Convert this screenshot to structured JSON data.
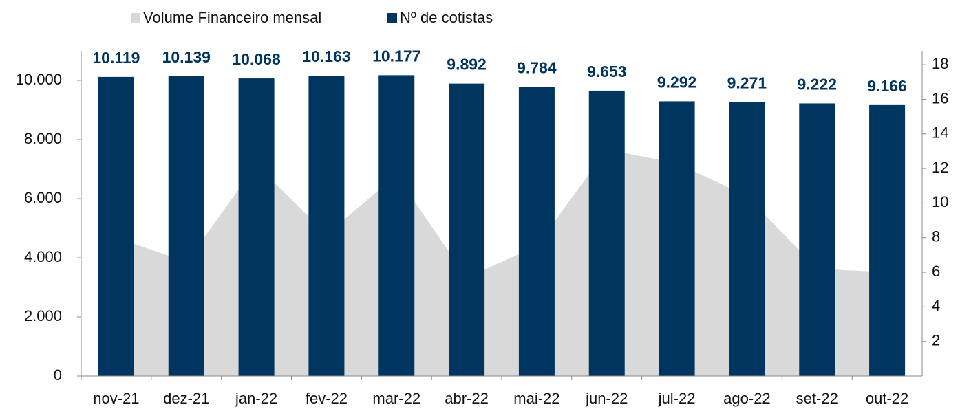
{
  "chart_data": {
    "type": "bar_area",
    "categories": [
      "nov-21",
      "dez-21",
      "jan-22",
      "fev-22",
      "mar-22",
      "abr-22",
      "mai-22",
      "jun-22",
      "jul-22",
      "ago-22",
      "set-22",
      "out-22"
    ],
    "series": [
      {
        "name": "Volume Financeiro mensal",
        "color": "#d9d9d9",
        "axis": "y2",
        "type": "area",
        "values": [
          8.0,
          6.6,
          12.2,
          8.2,
          11.6,
          5.7,
          7.5,
          13.1,
          12.3,
          10.4,
          6.2,
          6.0
        ]
      },
      {
        "name": "Nº de cotistas",
        "color": "#00355f",
        "type": "bar",
        "values": [
          10119,
          10139,
          10068,
          10163,
          10177,
          9892,
          9784,
          9653,
          9292,
          9271,
          9222,
          9166
        ],
        "value_labels": [
          "10.119",
          "10.139",
          "10.068",
          "10.163",
          "10.177",
          "9.892",
          "9.784",
          "9.653",
          "9.292",
          "9.271",
          "9.222",
          "9.166"
        ]
      }
    ],
    "ylim": [
      0,
      11000
    ],
    "yticks": [
      0,
      {
        "value": 2000,
        "label": "2.000"
      },
      {
        "value": 4000,
        "label": "4.000"
      },
      {
        "value": 6000,
        "label": "6.000"
      },
      {
        "value": 8000,
        "label": "8.000"
      },
      {
        "value": 10000,
        "label": "10.000"
      }
    ],
    "y2lim": [
      0,
      18.8
    ],
    "y2ticks": [
      2,
      4,
      6,
      8,
      10,
      12,
      14,
      16,
      18
    ],
    "legend": "top"
  }
}
